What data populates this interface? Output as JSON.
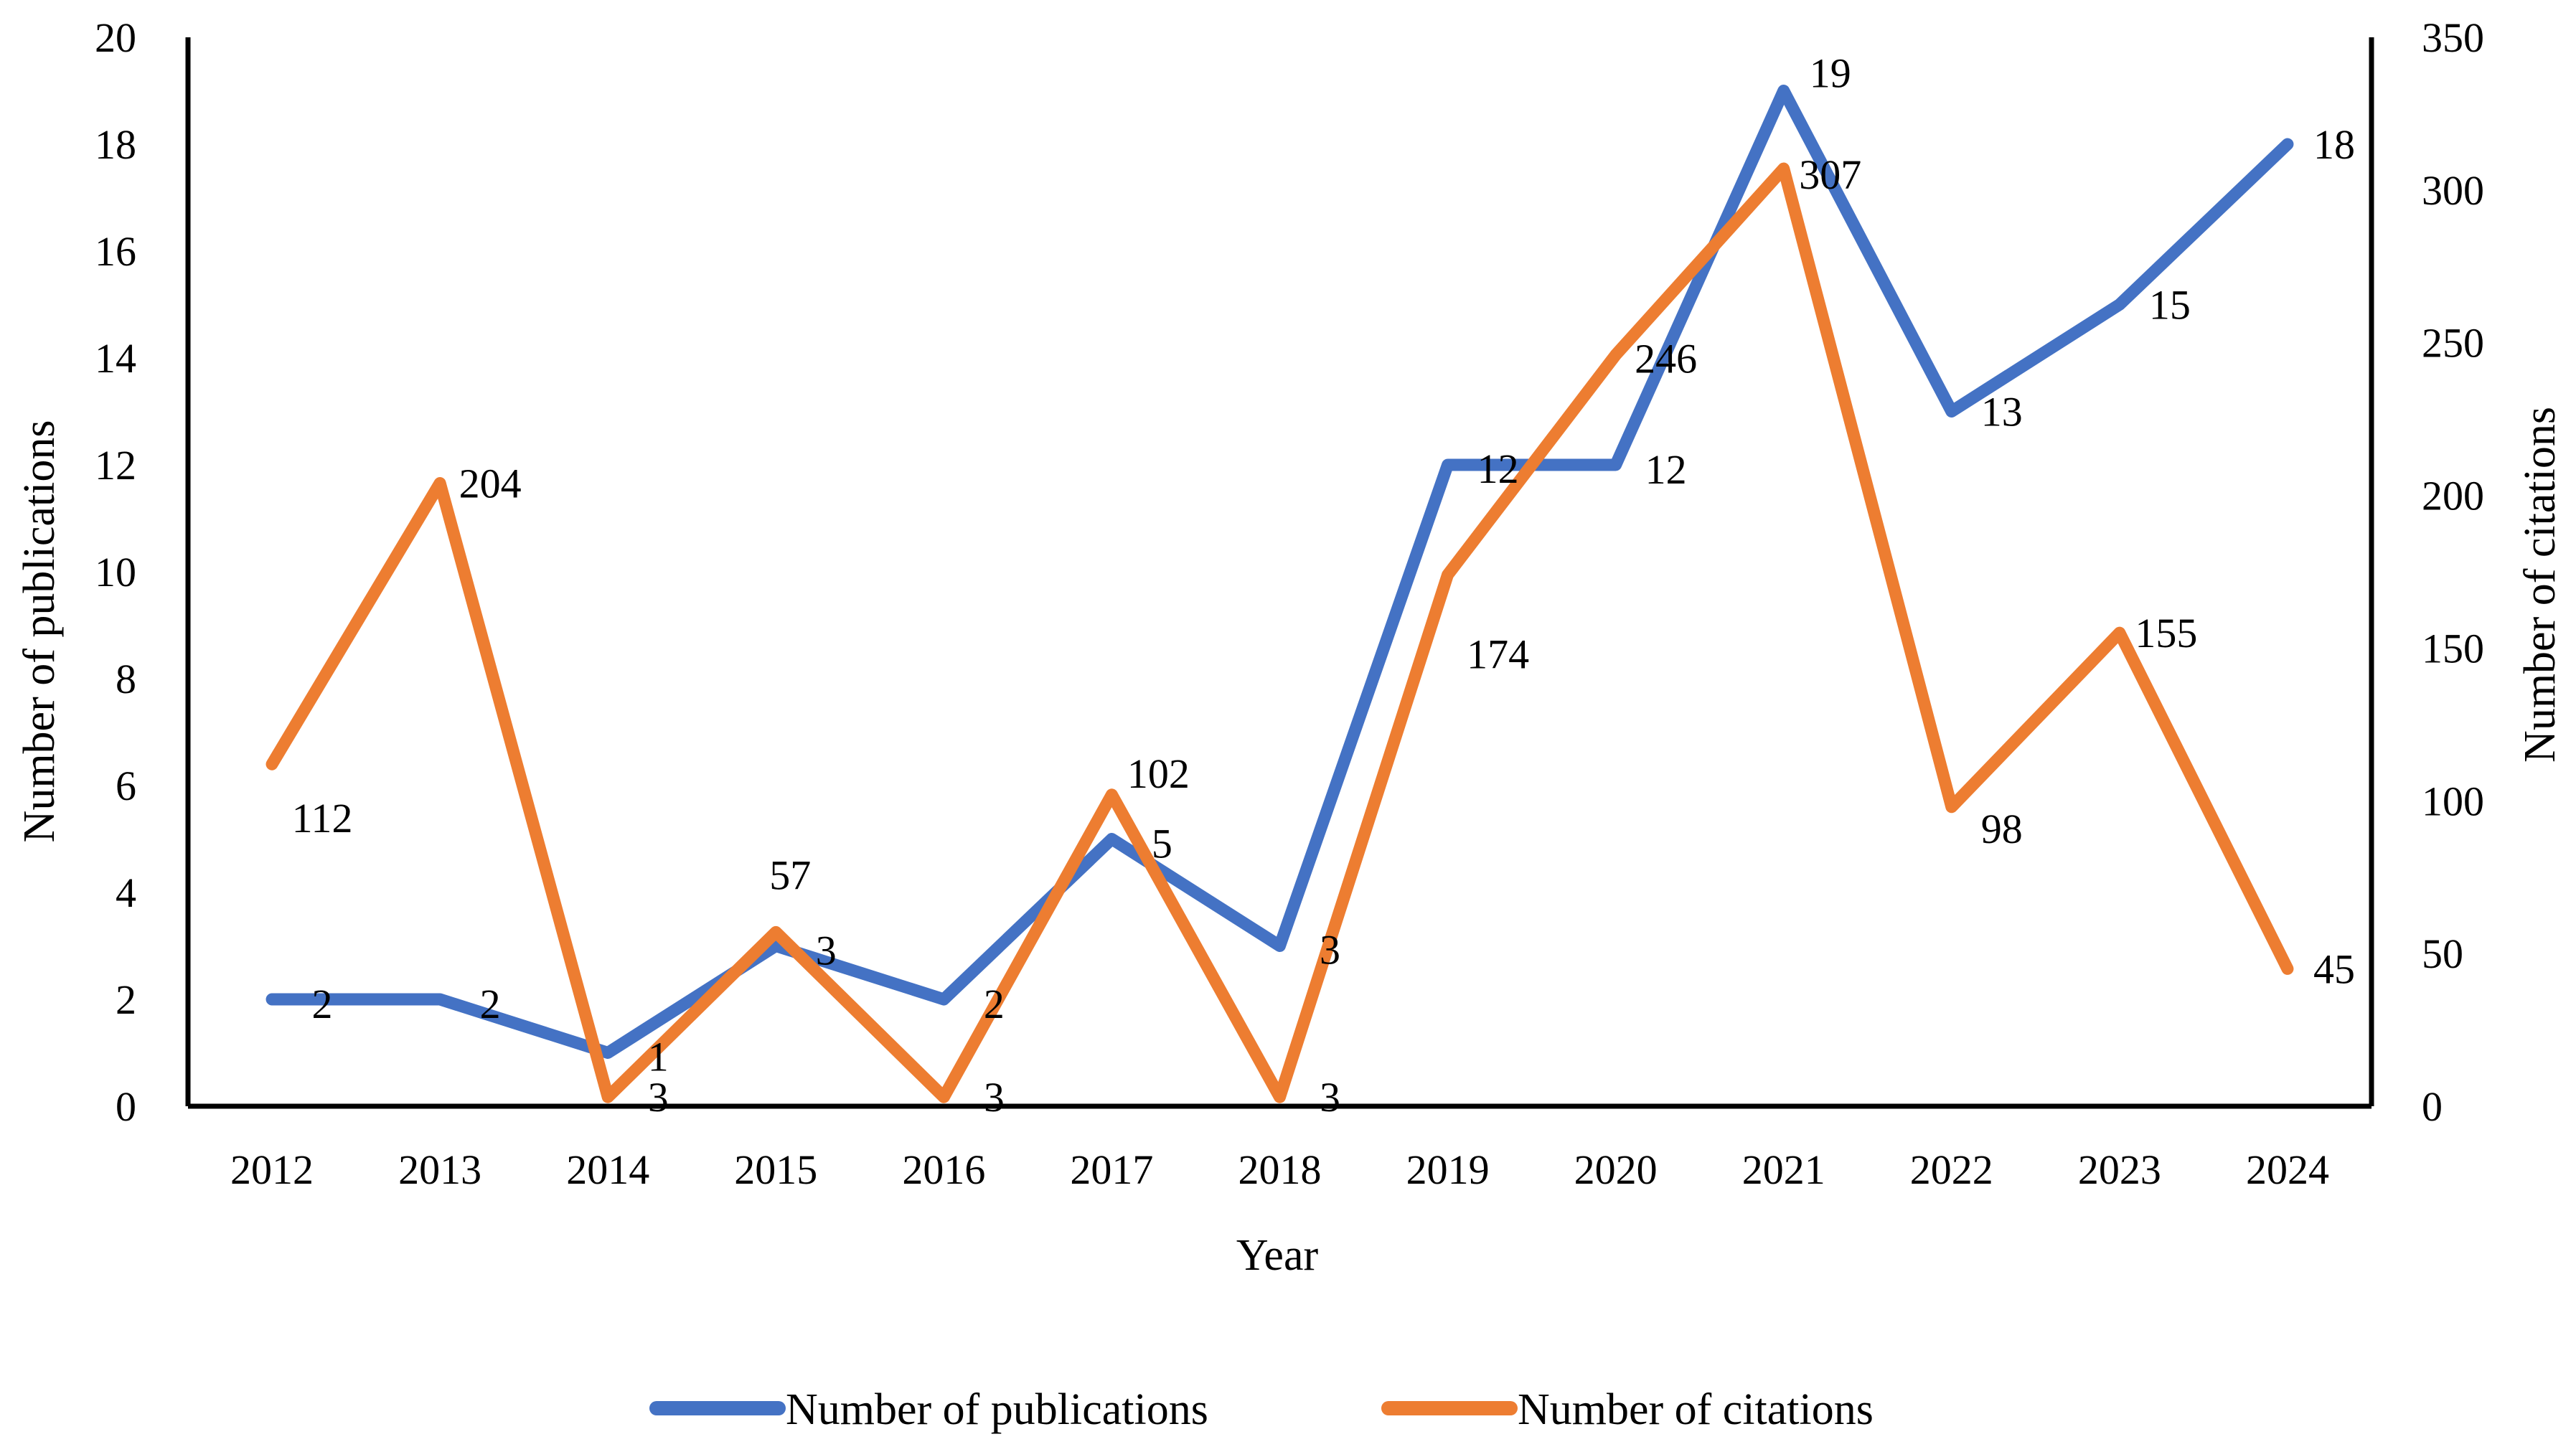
{
  "chart_data": {
    "type": "line",
    "categories": [
      "2012",
      "2013",
      "2014",
      "2015",
      "2016",
      "2017",
      "2018",
      "2019",
      "2020",
      "2021",
      "2022",
      "2023",
      "2024"
    ],
    "series": [
      {
        "name": "Number of publications",
        "axis": "left",
        "color": "#4472C4",
        "values": [
          2,
          2,
          1,
          3,
          2,
          5,
          3,
          12,
          12,
          19,
          13,
          15,
          18
        ],
        "labels": [
          "2",
          "2",
          "1",
          "3",
          "2",
          "5",
          "3",
          "12",
          "12",
          "19",
          "13",
          "15",
          "18"
        ]
      },
      {
        "name": "Number of citations",
        "axis": "right",
        "color": "#ED7D31",
        "values": [
          112,
          204,
          3,
          57,
          3,
          102,
          3,
          174,
          246,
          307,
          98,
          155,
          45
        ],
        "labels": [
          "112",
          "204",
          "3",
          "57",
          "3",
          "102",
          "3",
          "174",
          "246",
          "307",
          "98",
          "155",
          "45"
        ]
      }
    ],
    "xlabel": "Year",
    "ylabel": "Number of publications",
    "y2label": "Number of citations",
    "ylim": [
      0,
      20
    ],
    "y2lim": [
      0,
      350
    ],
    "yticks": [
      "0",
      "2",
      "4",
      "6",
      "8",
      "10",
      "12",
      "14",
      "16",
      "18",
      "20"
    ],
    "y2ticks": [
      "0",
      "50",
      "100",
      "150",
      "200",
      "250",
      "300",
      "350"
    ],
    "legend_position": "bottom",
    "grid": false
  }
}
